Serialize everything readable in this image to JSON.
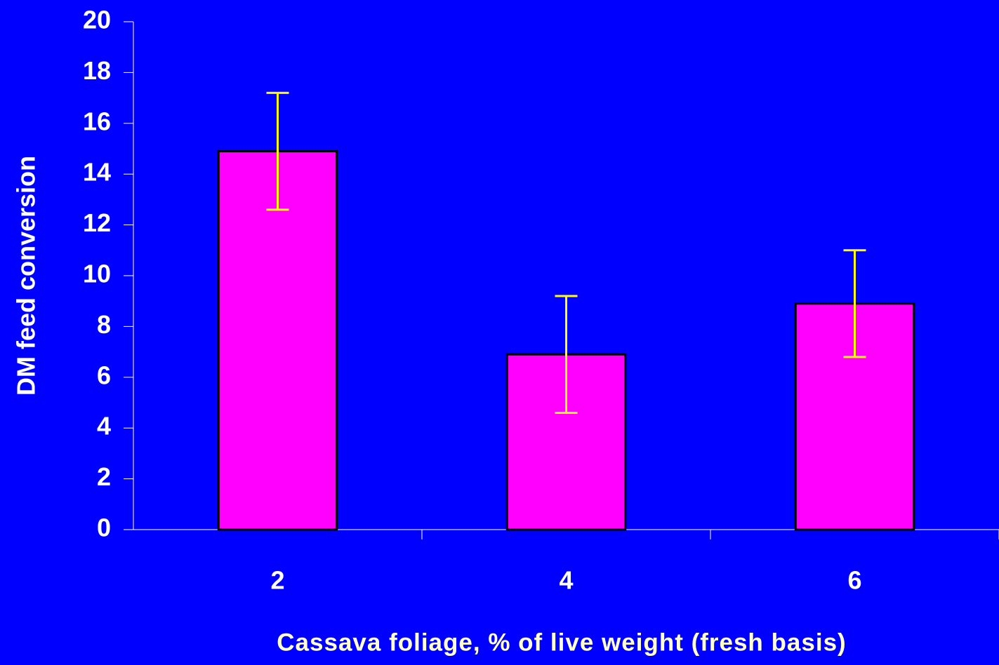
{
  "chart_data": {
    "type": "bar",
    "x_label": "Cassava foliage, % of live weight (fresh basis)",
    "y_label": "DM feed conversion",
    "categories": [
      "2",
      "4",
      "6"
    ],
    "values": [
      14.9,
      6.9,
      8.9
    ],
    "errors": [
      2.3,
      2.3,
      2.1
    ],
    "color": "#ff00ff",
    "error_color": "#ffff00",
    "ylim": [
      0,
      20
    ],
    "yticks": [
      0,
      2,
      4,
      6,
      8,
      10,
      12,
      14,
      16,
      18,
      20
    ],
    "grid": false
  }
}
